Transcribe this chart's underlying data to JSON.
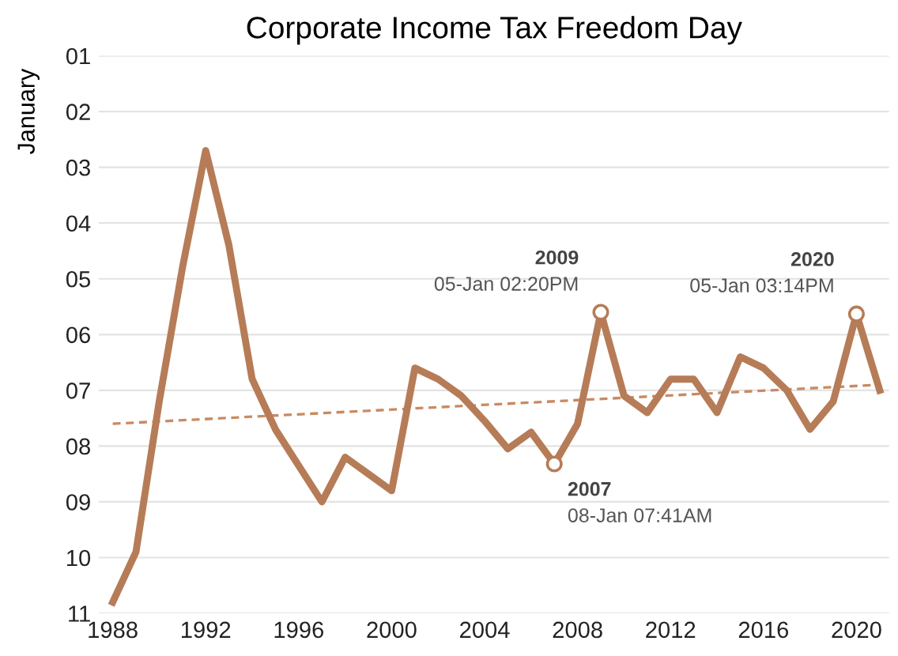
{
  "chart_data": {
    "type": "line",
    "title": "Corporate Income Tax Freedom Day",
    "ylabel": "January",
    "series": [
      {
        "color": "#b67c57",
        "x": [
          1988,
          1989,
          1990,
          1991,
          1992,
          1993,
          1994,
          1995,
          1996,
          1997,
          1998,
          1999,
          2000,
          2001,
          2002,
          2003,
          2004,
          2005,
          2006,
          2007,
          2008,
          2009,
          2010,
          2011,
          2012,
          2013,
          2014,
          2015,
          2016,
          2017,
          2018,
          2019,
          2020,
          2021
        ],
        "values": [
          10.8,
          9.9,
          7.2,
          4.8,
          2.7,
          4.4,
          6.8,
          7.7,
          8.35,
          9.0,
          8.2,
          8.5,
          8.8,
          6.6,
          6.8,
          7.1,
          7.55,
          8.05,
          7.75,
          8.32,
          7.6,
          5.6,
          7.1,
          7.4,
          6.8,
          6.8,
          7.4,
          6.4,
          6.6,
          7.0,
          7.7,
          7.2,
          5.63,
          7.0
        ]
      },
      {
        "type": "line",
        "color": "#c98a62",
        "line_style": "dashed",
        "marker": "none",
        "x": [
          1988,
          2021
        ],
        "values": [
          7.6,
          6.9
        ]
      },
      {
        "type": "scatter",
        "color": "#b67c57",
        "marker": "circle",
        "x": [
          2007,
          2009,
          2020
        ],
        "values": [
          8.32,
          5.6,
          5.63
        ]
      }
    ],
    "annotations": [
      {
        "text": "2009\n05-Jan 02:20PM",
        "x": 2009,
        "y": 5.6
      },
      {
        "text": "2007\n08-Jan 07:41AM",
        "x": 2007,
        "y": 8.32
      },
      {
        "text": "2020\n05-Jan 03:14PM",
        "x": 2020,
        "y": 5.63
      }
    ],
    "xlim": [
      1987.4,
      2021.4
    ],
    "xticks": [
      1988,
      1992,
      1996,
      2000,
      2004,
      2008,
      2012,
      2016,
      2020
    ],
    "ylim": [
      11,
      1
    ],
    "yticks": [
      {
        "value": 1,
        "label": "01"
      },
      {
        "value": 2,
        "label": "02"
      },
      {
        "value": 3,
        "label": "03"
      },
      {
        "value": 4,
        "label": "04"
      },
      {
        "value": 5,
        "label": "05"
      },
      {
        "value": 6,
        "label": "06"
      },
      {
        "value": 7,
        "label": "07"
      },
      {
        "value": 8,
        "label": "08"
      },
      {
        "value": 9,
        "label": "09"
      },
      {
        "value": 10,
        "label": "10"
      },
      {
        "value": 11,
        "label": "11"
      }
    ],
    "grid": "y",
    "legend": false
  }
}
